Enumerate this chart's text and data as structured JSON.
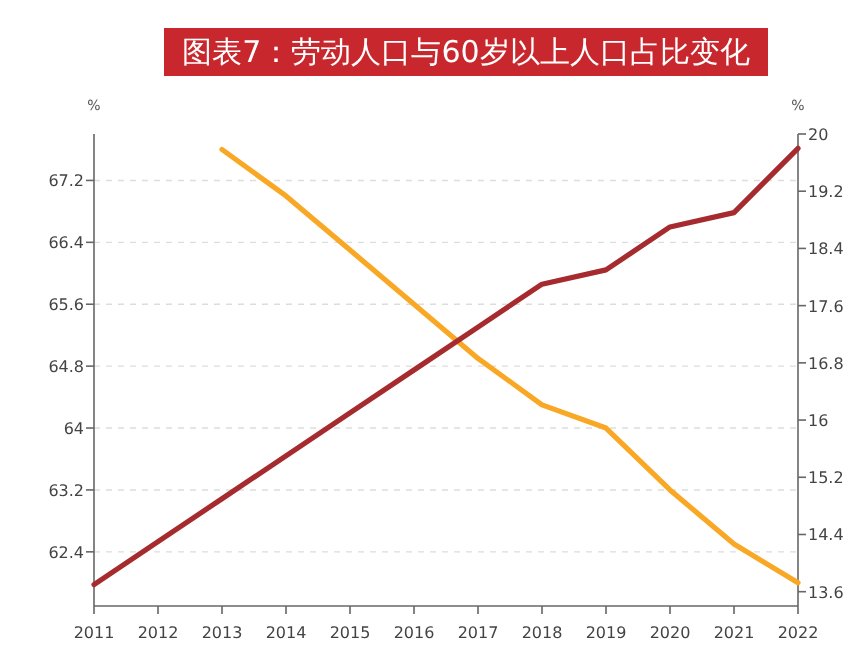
{
  "chart_data": {
    "type": "line",
    "title": "图表7：劳动人口与60岁以上人口占比变化",
    "ylabel": "%",
    "y2label": "%",
    "x": [
      2011,
      2012,
      2013,
      2014,
      2015,
      2016,
      2017,
      2018,
      2019,
      2020,
      2021,
      2022
    ],
    "series": [
      {
        "color": "#f9a825",
        "values": [
          null,
          null,
          67.6,
          67.0,
          66.3,
          65.6,
          64.9,
          64.3,
          64.0,
          63.2,
          62.5,
          62.0
        ]
      },
      {
        "color": "#a62b2e",
        "axis": "y2",
        "values": [
          13.7,
          14.3,
          14.9,
          15.5,
          16.1,
          16.7,
          17.3,
          17.9,
          18.1,
          18.7,
          18.9,
          19.8
        ]
      }
    ],
    "xlim": [
      2011,
      2022
    ],
    "xticks": [
      2011,
      2012,
      2013,
      2014,
      2015,
      2016,
      2017,
      2018,
      2019,
      2020,
      2021,
      2022
    ],
    "ylim": [
      61.7,
      67.8
    ],
    "yticks": [
      62.4,
      63.2,
      64,
      64.8,
      65.6,
      66.4,
      67.2
    ],
    "y2lim": [
      13.4,
      20
    ],
    "y2ticks": [
      13.6,
      14.4,
      15.2,
      16,
      16.8,
      17.6,
      18.4,
      19.2,
      20
    ],
    "grid": "y",
    "marker": "none",
    "line_style": "solid"
  }
}
